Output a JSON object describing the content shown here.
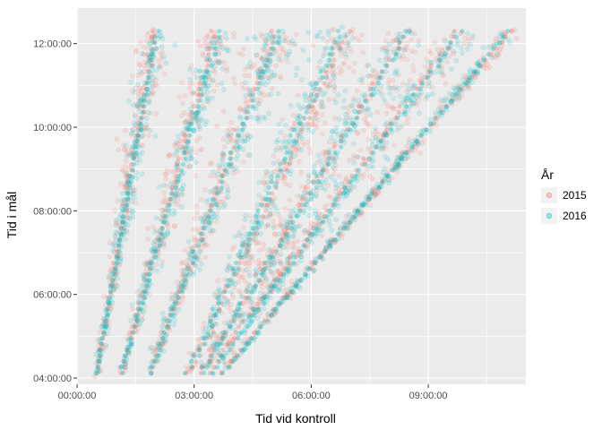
{
  "chart_data": {
    "type": "scatter",
    "title": "",
    "xlabel": "Tid vid kontroll",
    "ylabel": "Tid i mål",
    "xlim": [
      0,
      11.5
    ],
    "ylim": [
      3.85,
      12.85
    ],
    "x_ticks": [
      {
        "value": 0,
        "label": "00:00:00"
      },
      {
        "value": 3,
        "label": "03:00:00"
      },
      {
        "value": 6,
        "label": "06:00:00"
      },
      {
        "value": 9,
        "label": "09:00:00"
      }
    ],
    "y_ticks": [
      {
        "value": 4,
        "label": "04:00:00"
      },
      {
        "value": 6,
        "label": "06:00:00"
      },
      {
        "value": 8,
        "label": "08:00:00"
      },
      {
        "value": 10,
        "label": "10:00:00"
      },
      {
        "value": 12,
        "label": "12:00:00"
      }
    ],
    "grid": true,
    "legend": {
      "title": "År",
      "position": "right",
      "entries": [
        {
          "label": "2015",
          "color": "#F8766D"
        },
        {
          "label": "2016",
          "color": "#00BFC4"
        }
      ]
    },
    "background": "#EBEBEB",
    "series": [
      {
        "name": "2015",
        "color": "#F8766D",
        "bands": [
          {
            "x_start": 0.5,
            "x_end": 2.0,
            "spread": 0.1
          },
          {
            "x_start": 1.15,
            "x_end": 3.55,
            "spread": 0.13
          },
          {
            "x_start": 1.85,
            "x_end": 5.1,
            "spread": 0.16
          },
          {
            "x_start": 2.85,
            "x_end": 6.95,
            "spread": 0.18
          },
          {
            "x_start": 3.15,
            "x_end": 8.45,
            "spread": 0.17
          },
          {
            "x_start": 3.35,
            "x_end": 9.8,
            "spread": 0.14
          },
          {
            "x_start": 3.7,
            "x_end": 11.1,
            "spread": 0.07
          }
        ]
      },
      {
        "name": "2016",
        "color": "#00BFC4",
        "bands": [
          {
            "x_start": 0.5,
            "x_end": 2.05,
            "spread": 0.08
          },
          {
            "x_start": 1.15,
            "x_end": 3.65,
            "spread": 0.11
          },
          {
            "x_start": 1.85,
            "x_end": 5.2,
            "spread": 0.14
          },
          {
            "x_start": 2.85,
            "x_end": 6.75,
            "spread": 0.16
          },
          {
            "x_start": 3.2,
            "x_end": 8.5,
            "spread": 0.15
          },
          {
            "x_start": 3.45,
            "x_end": 9.85,
            "spread": 0.12
          },
          {
            "x_start": 3.75,
            "x_end": 11.05,
            "spread": 0.05
          }
        ]
      }
    ],
    "y_band_range": [
      4.12,
      12.3
    ]
  }
}
